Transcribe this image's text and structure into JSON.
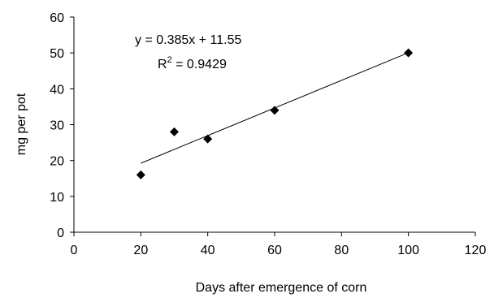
{
  "chart_data": {
    "type": "scatter",
    "title": "",
    "xlabel": "Days after emergence of corn",
    "ylabel": "mg per pot",
    "xlim": [
      0,
      120
    ],
    "ylim": [
      0,
      60
    ],
    "x_ticks": [
      0,
      20,
      40,
      60,
      80,
      100,
      120
    ],
    "y_ticks": [
      0,
      10,
      20,
      30,
      40,
      50,
      60
    ],
    "grid": false,
    "series": [
      {
        "marker": "diamond",
        "color": "#000000",
        "points": [
          {
            "x": 20,
            "y": 16
          },
          {
            "x": 30,
            "y": 28
          },
          {
            "x": 40,
            "y": 26
          },
          {
            "x": 60,
            "y": 34
          },
          {
            "x": 100,
            "y": 50
          }
        ]
      }
    ],
    "trendline": {
      "type": "linear",
      "slope": 0.385,
      "intercept": 11.55,
      "x_range": [
        20,
        100
      ],
      "color": "#000000"
    },
    "annotations": {
      "equation": "y = 0.385x + 11.55",
      "r_squared_prefix": "R",
      "r_squared_superscript": "2",
      "r_squared_suffix": " = 0.9429"
    }
  }
}
